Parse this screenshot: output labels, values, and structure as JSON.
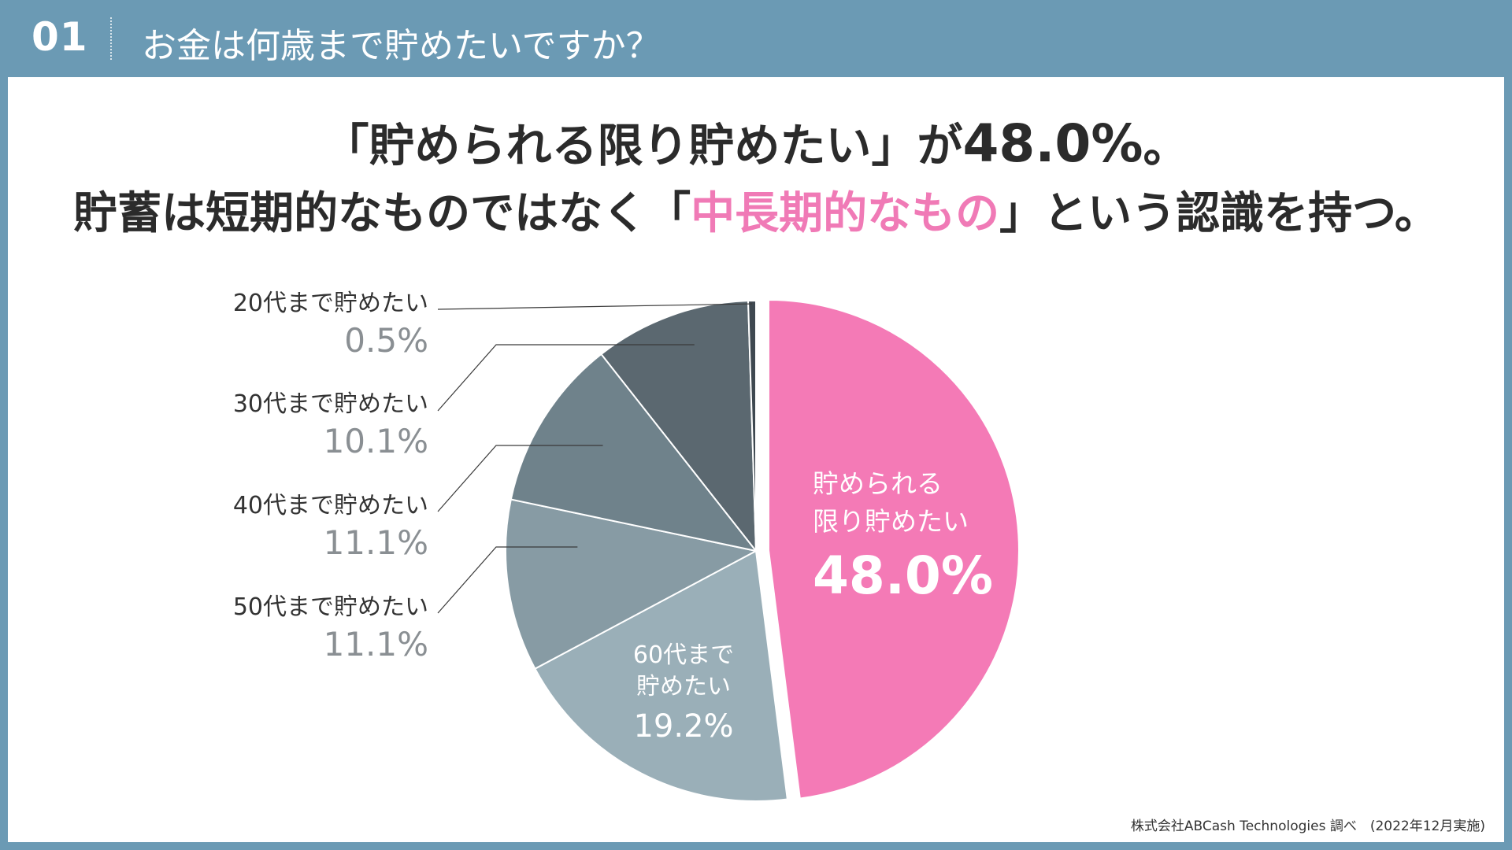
{
  "header": {
    "number": "01",
    "question": "お金は何歳まで貯めたいですか？"
  },
  "headline": {
    "line1_quote": "「貯められる限り貯めたい」が",
    "line1_value": "48.0%",
    "line1_end": "。",
    "line2_pre": "貯蓄は短期的なものではなく「",
    "line2_highlight": "中長期的なもの",
    "line2_post": "」という認識を持つ。"
  },
  "colors": {
    "pink": "#f47ab6",
    "highlight": "#f07ab6",
    "frame": "#6b9ab4"
  },
  "chart_data": {
    "type": "pie",
    "start": "12 o'clock, clockwise",
    "slices": [
      {
        "label_lines": [
          "貯められる",
          "限り貯めたい"
        ],
        "value": 48.0,
        "display": "48.0%",
        "color": "#f47ab6",
        "label_position": "inside",
        "exploded": true
      },
      {
        "label_lines": [
          "60代まで",
          "貯めたい"
        ],
        "value": 19.2,
        "display": "19.2%",
        "color": "#9aafb8",
        "label_position": "inside"
      },
      {
        "label_lines": [
          "50代まで貯めたい"
        ],
        "value": 11.1,
        "display": "11.1%",
        "color": "#879ba4",
        "label_position": "outside"
      },
      {
        "label_lines": [
          "40代まで貯めたい"
        ],
        "value": 11.1,
        "display": "11.1%",
        "color": "#6f828b",
        "label_position": "outside"
      },
      {
        "label_lines": [
          "30代まで貯めたい"
        ],
        "value": 10.1,
        "display": "10.1%",
        "color": "#5b6870",
        "label_position": "outside"
      },
      {
        "label_lines": [
          "20代まで貯めたい"
        ],
        "value": 0.5,
        "display": "0.5%",
        "color": "#3e4850",
        "label_position": "outside"
      }
    ]
  },
  "source": "株式会社ABCash Technologies 調べ　(2022年12月実施)"
}
